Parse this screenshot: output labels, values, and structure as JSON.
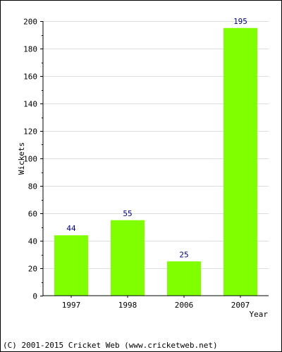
{
  "chart_data": {
    "type": "bar",
    "categories": [
      "1997",
      "1998",
      "2006",
      "2007"
    ],
    "values": [
      44,
      55,
      25,
      195
    ],
    "data_labels": [
      "44",
      "55",
      "25",
      "195"
    ],
    "xlabel": "Year",
    "ylabel": "Wickets",
    "ylim": [
      0,
      200
    ],
    "yticks": [
      "0",
      "20",
      "40",
      "60",
      "80",
      "100",
      "120",
      "140",
      "160",
      "180",
      "200"
    ],
    "grid": true,
    "bar_color": "#80ff00",
    "label_color": "#000080"
  },
  "footer": "(C) 2001-2015 Cricket Web (www.cricketweb.net)"
}
